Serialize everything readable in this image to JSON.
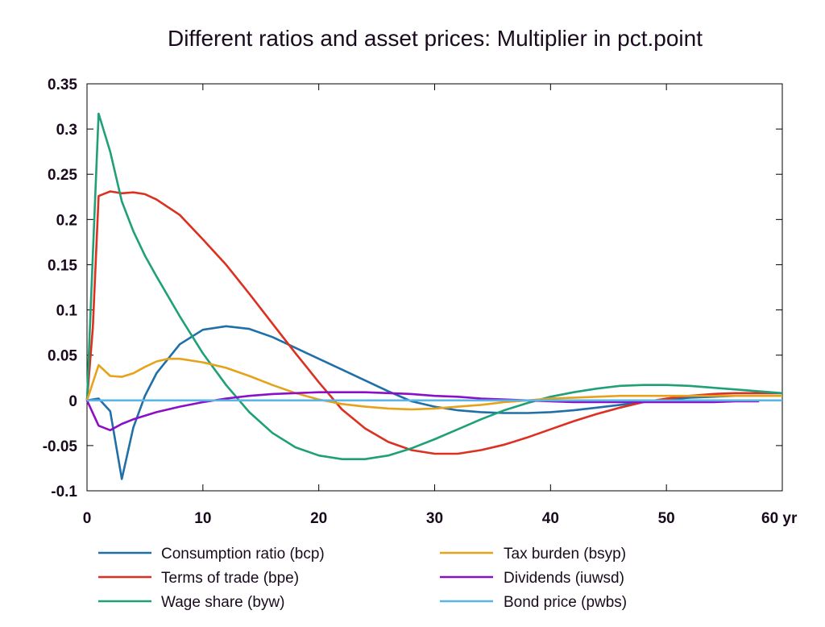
{
  "chart_data": {
    "type": "line",
    "title": "Different ratios and asset prices: Multiplier in pct.point",
    "x_unit": "yr",
    "xlim": [
      0,
      60
    ],
    "ylim": [
      -0.1,
      0.35
    ],
    "x_ticks": [
      0,
      10,
      20,
      30,
      40,
      50,
      60
    ],
    "x_tick_labels": [
      "0",
      "10",
      "20",
      "30",
      "40",
      "50",
      "60 yr"
    ],
    "y_ticks": [
      -0.1,
      -0.05,
      0,
      0.05,
      0.1,
      0.15,
      0.2,
      0.25,
      0.3,
      0.35
    ],
    "y_tick_labels": [
      "-0.1",
      "-0.05",
      "0",
      "0.05",
      "0.1",
      "0.15",
      "0.2",
      "0.25",
      "0.3",
      "0.35"
    ],
    "grid": false,
    "legend_position": "bottom",
    "series": [
      {
        "name": "Consumption ratio (bcp)",
        "color": "#1f6fa8",
        "points": [
          [
            0,
            0
          ],
          [
            1,
            0.002
          ],
          [
            2,
            -0.012
          ],
          [
            3,
            -0.087
          ],
          [
            4,
            -0.03
          ],
          [
            5,
            0.005
          ],
          [
            6,
            0.03
          ],
          [
            8,
            0.062
          ],
          [
            10,
            0.078
          ],
          [
            12,
            0.082
          ],
          [
            14,
            0.079
          ],
          [
            16,
            0.07
          ],
          [
            18,
            0.058
          ],
          [
            20,
            0.046
          ],
          [
            22,
            0.034
          ],
          [
            24,
            0.022
          ],
          [
            26,
            0.01
          ],
          [
            28,
            -0.001
          ],
          [
            30,
            -0.007
          ],
          [
            32,
            -0.011
          ],
          [
            34,
            -0.013
          ],
          [
            36,
            -0.014
          ],
          [
            38,
            -0.014
          ],
          [
            40,
            -0.013
          ],
          [
            42,
            -0.011
          ],
          [
            44,
            -0.008
          ],
          [
            46,
            -0.005
          ],
          [
            48,
            -0.002
          ],
          [
            50,
            0.001
          ],
          [
            52,
            0.003
          ],
          [
            54,
            0.004
          ],
          [
            56,
            0.005
          ],
          [
            58,
            0.005
          ],
          [
            60,
            0.005
          ]
        ]
      },
      {
        "name": "Terms of trade (bpe)",
        "color": "#dc3020",
        "points": [
          [
            0,
            0
          ],
          [
            0.5,
            0.08
          ],
          [
            1,
            0.226
          ],
          [
            2,
            0.231
          ],
          [
            3,
            0.229
          ],
          [
            4,
            0.23
          ],
          [
            5,
            0.228
          ],
          [
            6,
            0.222
          ],
          [
            8,
            0.205
          ],
          [
            10,
            0.178
          ],
          [
            12,
            0.15
          ],
          [
            14,
            0.118
          ],
          [
            16,
            0.085
          ],
          [
            18,
            0.052
          ],
          [
            20,
            0.02
          ],
          [
            22,
            -0.01
          ],
          [
            24,
            -0.031
          ],
          [
            26,
            -0.046
          ],
          [
            28,
            -0.055
          ],
          [
            30,
            -0.059
          ],
          [
            32,
            -0.059
          ],
          [
            34,
            -0.055
          ],
          [
            36,
            -0.049
          ],
          [
            38,
            -0.041
          ],
          [
            40,
            -0.032
          ],
          [
            42,
            -0.023
          ],
          [
            44,
            -0.015
          ],
          [
            46,
            -0.008
          ],
          [
            48,
            -0.002
          ],
          [
            50,
            0.002
          ],
          [
            52,
            0.005
          ],
          [
            54,
            0.007
          ],
          [
            56,
            0.008
          ],
          [
            58,
            0.008
          ],
          [
            60,
            0.008
          ]
        ]
      },
      {
        "name": "Wage share (byw)",
        "color": "#1fa079",
        "points": [
          [
            0,
            0
          ],
          [
            0.5,
            0.16
          ],
          [
            1,
            0.317
          ],
          [
            2,
            0.275
          ],
          [
            3,
            0.22
          ],
          [
            4,
            0.187
          ],
          [
            5,
            0.16
          ],
          [
            6,
            0.137
          ],
          [
            8,
            0.093
          ],
          [
            10,
            0.052
          ],
          [
            12,
            0.017
          ],
          [
            14,
            -0.013
          ],
          [
            16,
            -0.036
          ],
          [
            18,
            -0.052
          ],
          [
            20,
            -0.061
          ],
          [
            22,
            -0.065
          ],
          [
            24,
            -0.065
          ],
          [
            26,
            -0.061
          ],
          [
            28,
            -0.053
          ],
          [
            30,
            -0.043
          ],
          [
            32,
            -0.032
          ],
          [
            34,
            -0.021
          ],
          [
            36,
            -0.011
          ],
          [
            38,
            -0.003
          ],
          [
            40,
            0.004
          ],
          [
            42,
            0.009
          ],
          [
            44,
            0.013
          ],
          [
            46,
            0.016
          ],
          [
            48,
            0.017
          ],
          [
            50,
            0.017
          ],
          [
            52,
            0.016
          ],
          [
            54,
            0.014
          ],
          [
            56,
            0.012
          ],
          [
            58,
            0.01
          ],
          [
            60,
            0.008
          ]
        ]
      },
      {
        "name": "Tax burden (bsyp)",
        "color": "#e6a21a",
        "points": [
          [
            0,
            0
          ],
          [
            1,
            0.039
          ],
          [
            2,
            0.027
          ],
          [
            3,
            0.026
          ],
          [
            4,
            0.03
          ],
          [
            5,
            0.037
          ],
          [
            6,
            0.043
          ],
          [
            7,
            0.046
          ],
          [
            8,
            0.046
          ],
          [
            10,
            0.042
          ],
          [
            12,
            0.036
          ],
          [
            14,
            0.027
          ],
          [
            16,
            0.017
          ],
          [
            18,
            0.008
          ],
          [
            20,
            0.001
          ],
          [
            22,
            -0.004
          ],
          [
            24,
            -0.007
          ],
          [
            26,
            -0.009
          ],
          [
            28,
            -0.01
          ],
          [
            30,
            -0.009
          ],
          [
            32,
            -0.007
          ],
          [
            34,
            -0.005
          ],
          [
            36,
            -0.002
          ],
          [
            38,
            0
          ],
          [
            40,
            0.002
          ],
          [
            42,
            0.003
          ],
          [
            44,
            0.004
          ],
          [
            46,
            0.005
          ],
          [
            48,
            0.005
          ],
          [
            50,
            0.005
          ],
          [
            52,
            0.005
          ],
          [
            54,
            0.005
          ],
          [
            56,
            0.005
          ],
          [
            58,
            0.005
          ],
          [
            60,
            0.005
          ]
        ]
      },
      {
        "name": "Dividends (iuwsd)",
        "color": "#8a10c8",
        "points": [
          [
            0,
            0
          ],
          [
            1,
            -0.028
          ],
          [
            2,
            -0.033
          ],
          [
            3,
            -0.026
          ],
          [
            4,
            -0.021
          ],
          [
            6,
            -0.013
          ],
          [
            8,
            -0.007
          ],
          [
            10,
            -0.002
          ],
          [
            12,
            0.002
          ],
          [
            14,
            0.005
          ],
          [
            16,
            0.007
          ],
          [
            18,
            0.008
          ],
          [
            20,
            0.009
          ],
          [
            22,
            0.009
          ],
          [
            24,
            0.009
          ],
          [
            26,
            0.008
          ],
          [
            28,
            0.007
          ],
          [
            30,
            0.005
          ],
          [
            32,
            0.004
          ],
          [
            34,
            0.002
          ],
          [
            36,
            0.001
          ],
          [
            38,
            0
          ],
          [
            40,
            -0.001
          ],
          [
            42,
            -0.002
          ],
          [
            44,
            -0.002
          ],
          [
            46,
            -0.002
          ],
          [
            48,
            -0.002
          ],
          [
            50,
            -0.002
          ],
          [
            52,
            -0.002
          ],
          [
            54,
            -0.002
          ],
          [
            56,
            -0.001
          ],
          [
            58,
            -0.001
          ]
        ]
      },
      {
        "name": "Bond price (pwbs)",
        "color": "#5ab4e6",
        "points": [
          [
            0,
            0
          ],
          [
            10,
            0
          ],
          [
            20,
            0
          ],
          [
            30,
            0
          ],
          [
            40,
            0
          ],
          [
            50,
            0
          ],
          [
            60,
            0
          ]
        ]
      }
    ]
  }
}
